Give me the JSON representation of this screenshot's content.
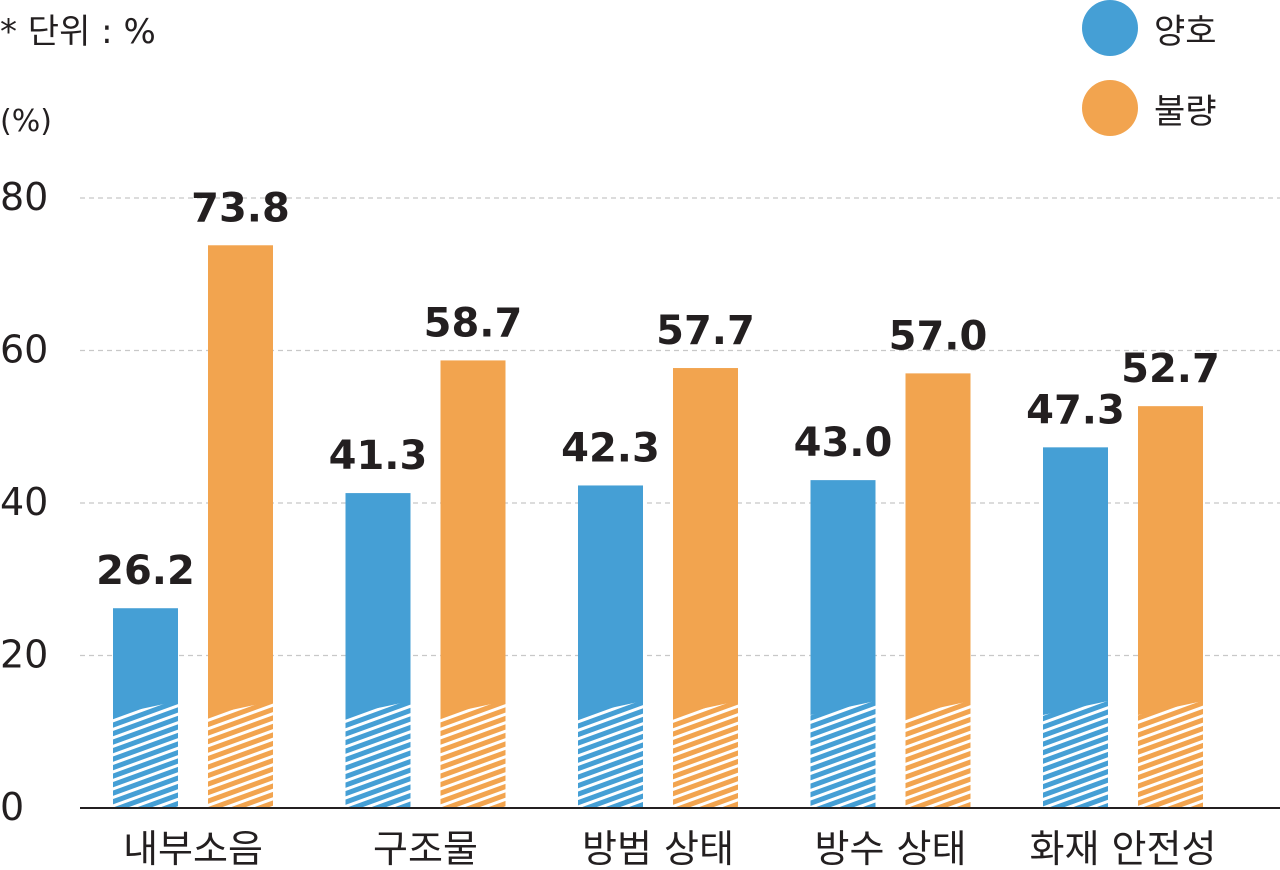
{
  "unit_note": "* 단위 : %",
  "y_unit_label": "(%)",
  "legend": [
    {
      "name": "양호",
      "color": "#459fd5"
    },
    {
      "name": "불량",
      "color": "#f2a44f"
    }
  ],
  "chart_data": {
    "type": "bar",
    "title": "",
    "xlabel": "",
    "ylabel": "(%)",
    "ylim": [
      0,
      80
    ],
    "yticks": [
      0,
      20,
      40,
      60,
      80
    ],
    "grid": true,
    "legend_position": "top-right",
    "categories": [
      "내부소음",
      "구조물",
      "방범 상태",
      "방수 상태",
      "화재 안전성"
    ],
    "series": [
      {
        "name": "양호",
        "color": "#459fd5",
        "values": [
          26.2,
          41.3,
          42.3,
          43.0,
          47.3
        ]
      },
      {
        "name": "불량",
        "color": "#f2a44f",
        "values": [
          73.8,
          58.7,
          57.7,
          57.0,
          52.7
        ]
      }
    ]
  }
}
